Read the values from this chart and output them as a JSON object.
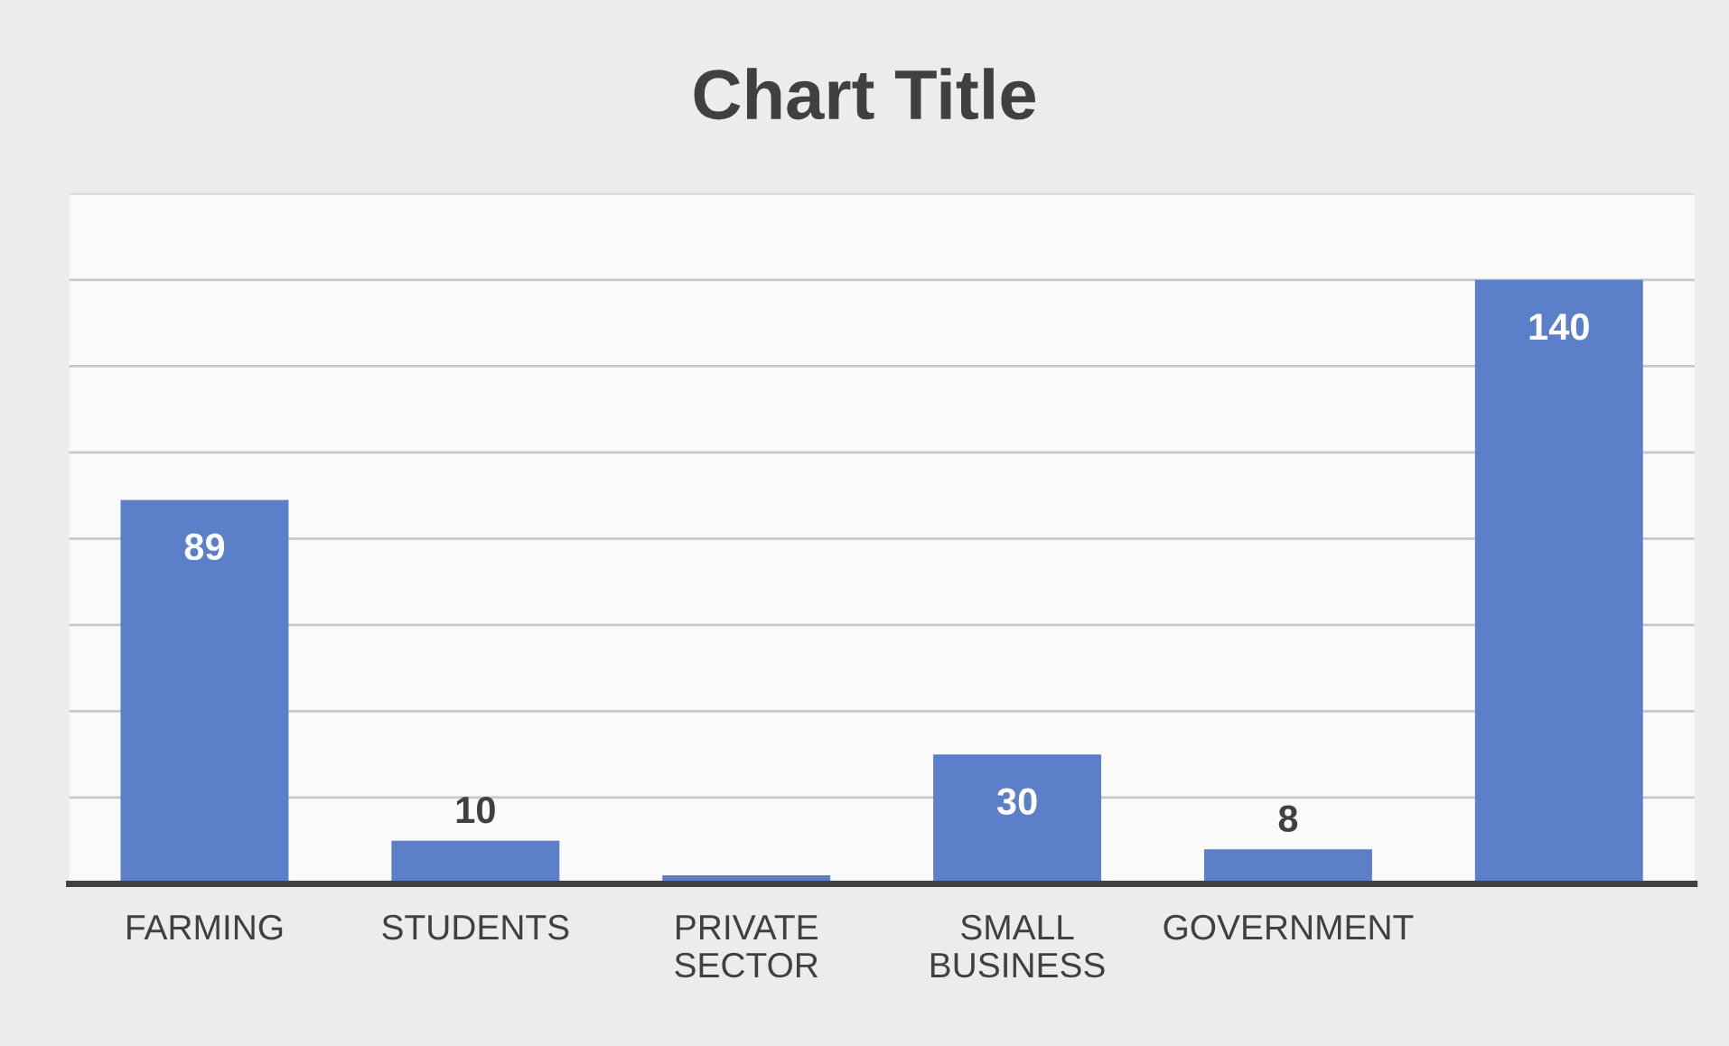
{
  "chart_data": {
    "type": "bar",
    "title": "Chart Title",
    "categories": [
      "FARMING",
      "STUDENTS",
      "PRIVATE\nSECTOR",
      "SMALL\nBUSINESS",
      "GOVERNMENT",
      null
    ],
    "values": [
      89,
      10,
      2,
      30,
      8,
      140
    ],
    "value_labels": [
      "89",
      "10",
      null,
      "30",
      "8",
      "140"
    ],
    "color": "#5b7fc8",
    "ylim": [
      0,
      160
    ],
    "yticks": [
      {
        "value": 0,
        "label": null
      },
      {
        "value": 20,
        "label": null
      },
      {
        "value": 40,
        "label": null
      },
      {
        "value": 60,
        "label": null
      },
      {
        "value": 80,
        "label": null
      },
      {
        "value": 100,
        "label": null
      },
      {
        "value": 120,
        "label": null
      },
      {
        "value": 140,
        "label": null
      },
      {
        "value": 160,
        "label": null
      }
    ],
    "tick_labels": "x",
    "grid": "y",
    "legend": false
  }
}
